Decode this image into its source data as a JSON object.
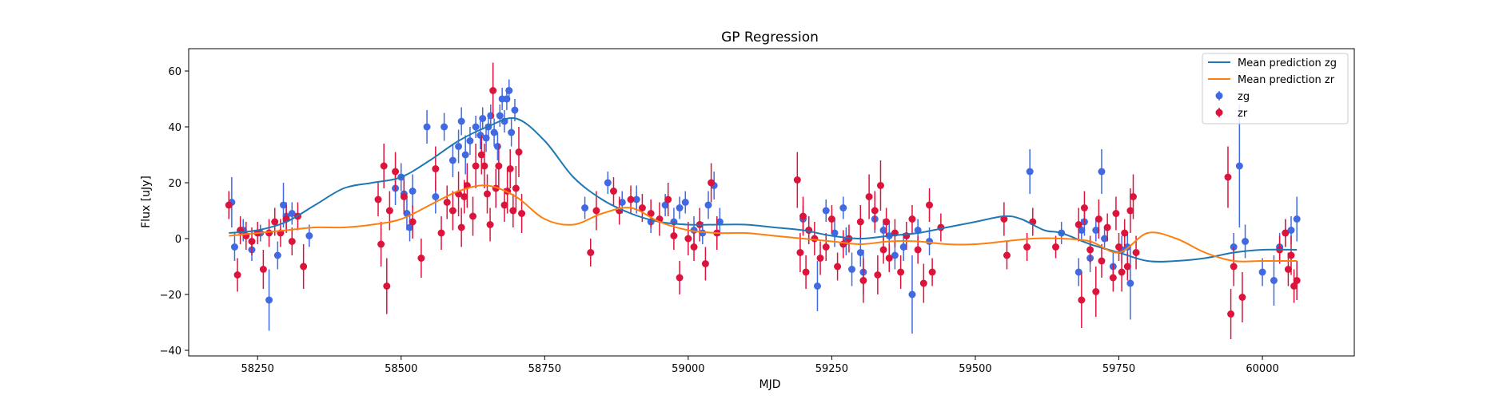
{
  "chart_data": {
    "type": "scatter",
    "title": "GP Regression",
    "xlabel": "MJD",
    "ylabel": "Flux [uJy]",
    "xlim": [
      58130,
      60160
    ],
    "ylim": [
      -42,
      68
    ],
    "xticks": [
      58250,
      58500,
      58750,
      59000,
      59250,
      59500,
      59750,
      60000
    ],
    "yticks": [
      -40,
      -20,
      0,
      20,
      40,
      60
    ],
    "grid": false,
    "legend_position": "top-right",
    "colors": {
      "zg_line": "#1f77b4",
      "zr_line": "#ff7f0e",
      "zg_points": "#4169e1",
      "zr_points": "#dc143c"
    },
    "lines": [
      {
        "name": "Mean prediction zg",
        "color": "#1f77b4",
        "x": [
          58200,
          58250,
          58300,
          58350,
          58400,
          58450,
          58500,
          58550,
          58600,
          58650,
          58700,
          58750,
          58800,
          58850,
          58900,
          58950,
          59000,
          59050,
          59100,
          59150,
          59200,
          59250,
          59300,
          59350,
          59400,
          59450,
          59500,
          59550,
          59580,
          59620,
          59650,
          59700,
          59750,
          59800,
          59850,
          59900,
          59950,
          60000,
          60060
        ],
        "y": [
          2,
          3,
          6,
          12,
          18,
          20,
          22,
          28,
          35,
          40,
          43,
          35,
          22,
          14,
          9,
          6,
          5,
          5,
          5,
          4,
          3,
          1,
          0,
          1,
          2,
          4,
          6,
          8,
          7,
          3,
          2,
          -2,
          -5,
          -8,
          -8,
          -7,
          -5,
          -4,
          -4
        ]
      },
      {
        "name": "Mean prediction zr",
        "color": "#ff7f0e",
        "x": [
          58200,
          58250,
          58300,
          58350,
          58400,
          58450,
          58500,
          58550,
          58600,
          58650,
          58700,
          58750,
          58800,
          58850,
          58900,
          58950,
          59000,
          59050,
          59100,
          59150,
          59200,
          59250,
          59300,
          59350,
          59400,
          59450,
          59500,
          59550,
          59600,
          59650,
          59700,
          59750,
          59800,
          59850,
          59900,
          59950,
          60000,
          60060
        ],
        "y": [
          1,
          2,
          3,
          4,
          4,
          5,
          7,
          12,
          17,
          19,
          15,
          7,
          5,
          9,
          11,
          6,
          3,
          2,
          2,
          1,
          0,
          -1,
          -2,
          -1,
          -1,
          -2,
          -2,
          -1,
          0,
          0,
          -1,
          -5,
          2,
          0,
          -5,
          -8,
          -8,
          -8
        ]
      }
    ],
    "series": [
      {
        "name": "zg",
        "color": "#4169e1",
        "points": [
          [
            58205,
            13,
            9
          ],
          [
            58210,
            -3,
            5
          ],
          [
            58225,
            3,
            4
          ],
          [
            58240,
            -4,
            4
          ],
          [
            58255,
            2,
            3
          ],
          [
            58270,
            -22,
            11
          ],
          [
            58285,
            -6,
            5
          ],
          [
            58295,
            12,
            8
          ],
          [
            58300,
            8,
            5
          ],
          [
            58310,
            9,
            4
          ],
          [
            58340,
            1,
            4
          ],
          [
            58490,
            18,
            6
          ],
          [
            58500,
            22,
            5
          ],
          [
            58505,
            16,
            6
          ],
          [
            58510,
            9,
            6
          ],
          [
            58515,
            4,
            5
          ],
          [
            58520,
            17,
            6
          ],
          [
            58545,
            40,
            6
          ],
          [
            58560,
            15,
            6
          ],
          [
            58575,
            40,
            5
          ],
          [
            58590,
            28,
            6
          ],
          [
            58600,
            33,
            6
          ],
          [
            58605,
            42,
            5
          ],
          [
            58612,
            30,
            7
          ],
          [
            58620,
            35,
            5
          ],
          [
            58630,
            40,
            4
          ],
          [
            58638,
            37,
            5
          ],
          [
            58642,
            43,
            4
          ],
          [
            58648,
            36,
            5
          ],
          [
            58652,
            40,
            5
          ],
          [
            58656,
            44,
            4
          ],
          [
            58662,
            38,
            5
          ],
          [
            58668,
            33,
            5
          ],
          [
            58672,
            44,
            4
          ],
          [
            58676,
            50,
            4
          ],
          [
            58680,
            42,
            4
          ],
          [
            58684,
            50,
            4
          ],
          [
            58688,
            53,
            4
          ],
          [
            58692,
            38,
            5
          ],
          [
            58698,
            46,
            4
          ],
          [
            58820,
            11,
            4
          ],
          [
            58860,
            20,
            4
          ],
          [
            58885,
            13,
            4
          ],
          [
            58910,
            14,
            5
          ],
          [
            58935,
            6,
            4
          ],
          [
            58960,
            12,
            4
          ],
          [
            58975,
            6,
            5
          ],
          [
            58985,
            11,
            4
          ],
          [
            58995,
            13,
            4
          ],
          [
            59010,
            3,
            5
          ],
          [
            59025,
            2,
            4
          ],
          [
            59035,
            12,
            5
          ],
          [
            59045,
            19,
            5
          ],
          [
            59055,
            6,
            5
          ],
          [
            59200,
            7,
            5
          ],
          [
            59210,
            3,
            5
          ],
          [
            59225,
            -17,
            9
          ],
          [
            59240,
            10,
            4
          ],
          [
            59255,
            2,
            5
          ],
          [
            59270,
            11,
            4
          ],
          [
            59275,
            -1,
            5
          ],
          [
            59285,
            -11,
            6
          ],
          [
            59300,
            -5,
            5
          ],
          [
            59305,
            -12,
            8
          ],
          [
            59325,
            7,
            5
          ],
          [
            59340,
            3,
            4
          ],
          [
            59350,
            1,
            5
          ],
          [
            59360,
            -6,
            5
          ],
          [
            59375,
            -3,
            5
          ],
          [
            59390,
            -20,
            14
          ],
          [
            59400,
            3,
            4
          ],
          [
            59420,
            -1,
            5
          ],
          [
            59595,
            24,
            8
          ],
          [
            59650,
            2,
            4
          ],
          [
            59680,
            -12,
            5
          ],
          [
            59685,
            3,
            4
          ],
          [
            59690,
            6,
            5
          ],
          [
            59700,
            -7,
            5
          ],
          [
            59710,
            3,
            4
          ],
          [
            59720,
            24,
            8
          ],
          [
            59725,
            0,
            4
          ],
          [
            59740,
            -10,
            5
          ],
          [
            59755,
            -4,
            5
          ],
          [
            59765,
            -3,
            5
          ],
          [
            59770,
            -16,
            13
          ],
          [
            59950,
            -3,
            5
          ],
          [
            59960,
            26,
            22
          ],
          [
            59970,
            -1,
            6
          ],
          [
            60000,
            -12,
            5
          ],
          [
            60020,
            -15,
            9
          ],
          [
            60030,
            -3,
            5
          ],
          [
            60040,
            2,
            5
          ],
          [
            60050,
            3,
            5
          ],
          [
            60060,
            7,
            8
          ]
        ]
      },
      {
        "name": "zr",
        "color": "#dc143c",
        "points": [
          [
            58200,
            12,
            5
          ],
          [
            58215,
            -13,
            6
          ],
          [
            58220,
            3,
            5
          ],
          [
            58230,
            1,
            5
          ],
          [
            58240,
            -1,
            5
          ],
          [
            58250,
            2,
            4
          ],
          [
            58260,
            -11,
            7
          ],
          [
            58270,
            2,
            5
          ],
          [
            58280,
            6,
            5
          ],
          [
            58290,
            2,
            5
          ],
          [
            58300,
            7,
            5
          ],
          [
            58310,
            -1,
            5
          ],
          [
            58320,
            8,
            5
          ],
          [
            58330,
            -10,
            8
          ],
          [
            58460,
            14,
            6
          ],
          [
            58465,
            -2,
            8
          ],
          [
            58470,
            26,
            8
          ],
          [
            58475,
            -17,
            10
          ],
          [
            58480,
            10,
            7
          ],
          [
            58490,
            24,
            7
          ],
          [
            58505,
            15,
            6
          ],
          [
            58520,
            6,
            6
          ],
          [
            58535,
            -7,
            7
          ],
          [
            58560,
            25,
            8
          ],
          [
            58570,
            2,
            6
          ],
          [
            58580,
            13,
            6
          ],
          [
            58590,
            10,
            7
          ],
          [
            58600,
            16,
            8
          ],
          [
            58605,
            4,
            7
          ],
          [
            58610,
            15,
            6
          ],
          [
            58615,
            19,
            8
          ],
          [
            58625,
            8,
            7
          ],
          [
            58630,
            26,
            8
          ],
          [
            58640,
            30,
            7
          ],
          [
            58645,
            26,
            8
          ],
          [
            58650,
            16,
            7
          ],
          [
            58655,
            5,
            6
          ],
          [
            58660,
            53,
            10
          ],
          [
            58665,
            18,
            7
          ],
          [
            58670,
            26,
            8
          ],
          [
            58680,
            12,
            6
          ],
          [
            58685,
            17,
            8
          ],
          [
            58690,
            25,
            7
          ],
          [
            58695,
            10,
            6
          ],
          [
            58700,
            18,
            8
          ],
          [
            58705,
            31,
            9
          ],
          [
            58710,
            9,
            7
          ],
          [
            58830,
            -5,
            5
          ],
          [
            58840,
            10,
            7
          ],
          [
            58870,
            17,
            5
          ],
          [
            58880,
            10,
            5
          ],
          [
            58900,
            14,
            5
          ],
          [
            58920,
            11,
            5
          ],
          [
            58935,
            9,
            5
          ],
          [
            58950,
            7,
            6
          ],
          [
            58965,
            14,
            6
          ],
          [
            58975,
            1,
            5
          ],
          [
            58985,
            -14,
            6
          ],
          [
            59000,
            0,
            6
          ],
          [
            59010,
            -3,
            5
          ],
          [
            59020,
            5,
            6
          ],
          [
            59030,
            -9,
            6
          ],
          [
            59040,
            20,
            7
          ],
          [
            59050,
            2,
            6
          ],
          [
            59190,
            21,
            10
          ],
          [
            59195,
            -5,
            7
          ],
          [
            59200,
            8,
            7
          ],
          [
            59205,
            -12,
            6
          ],
          [
            59210,
            3,
            5
          ],
          [
            59220,
            0,
            6
          ],
          [
            59230,
            -7,
            6
          ],
          [
            59240,
            -3,
            5
          ],
          [
            59250,
            7,
            5
          ],
          [
            59260,
            -10,
            5
          ],
          [
            59270,
            -2,
            5
          ],
          [
            59280,
            0,
            5
          ],
          [
            59300,
            6,
            6
          ],
          [
            59305,
            -15,
            8
          ],
          [
            59315,
            15,
            8
          ],
          [
            59325,
            10,
            7
          ],
          [
            59330,
            -13,
            7
          ],
          [
            59335,
            19,
            9
          ],
          [
            59340,
            -4,
            5
          ],
          [
            59345,
            6,
            5
          ],
          [
            59350,
            -7,
            5
          ],
          [
            59360,
            2,
            5
          ],
          [
            59370,
            -12,
            6
          ],
          [
            59380,
            1,
            5
          ],
          [
            59390,
            7,
            5
          ],
          [
            59400,
            -4,
            5
          ],
          [
            59410,
            -16,
            7
          ],
          [
            59420,
            12,
            6
          ],
          [
            59425,
            -12,
            5
          ],
          [
            59440,
            4,
            5
          ],
          [
            59550,
            7,
            6
          ],
          [
            59555,
            -6,
            5
          ],
          [
            59590,
            -3,
            5
          ],
          [
            59600,
            6,
            5
          ],
          [
            59640,
            -3,
            4
          ],
          [
            59680,
            5,
            6
          ],
          [
            59685,
            -22,
            10
          ],
          [
            59690,
            11,
            6
          ],
          [
            59700,
            -4,
            5
          ],
          [
            59710,
            -19,
            9
          ],
          [
            59715,
            7,
            7
          ],
          [
            59720,
            -8,
            6
          ],
          [
            59730,
            4,
            5
          ],
          [
            59740,
            -14,
            5
          ],
          [
            59745,
            9,
            6
          ],
          [
            59750,
            -3,
            5
          ],
          [
            59755,
            -12,
            7
          ],
          [
            59760,
            2,
            5
          ],
          [
            59765,
            -10,
            5
          ],
          [
            59770,
            10,
            8
          ],
          [
            59775,
            15,
            8
          ],
          [
            59780,
            -5,
            6
          ],
          [
            59940,
            22,
            11
          ],
          [
            59945,
            -27,
            9
          ],
          [
            59950,
            -10,
            7
          ],
          [
            59965,
            -21,
            9
          ],
          [
            60030,
            -4,
            5
          ],
          [
            60040,
            2,
            5
          ],
          [
            60045,
            -11,
            6
          ],
          [
            60050,
            -6,
            7
          ],
          [
            60055,
            -17,
            6
          ],
          [
            60060,
            -15,
            7
          ]
        ]
      }
    ]
  }
}
